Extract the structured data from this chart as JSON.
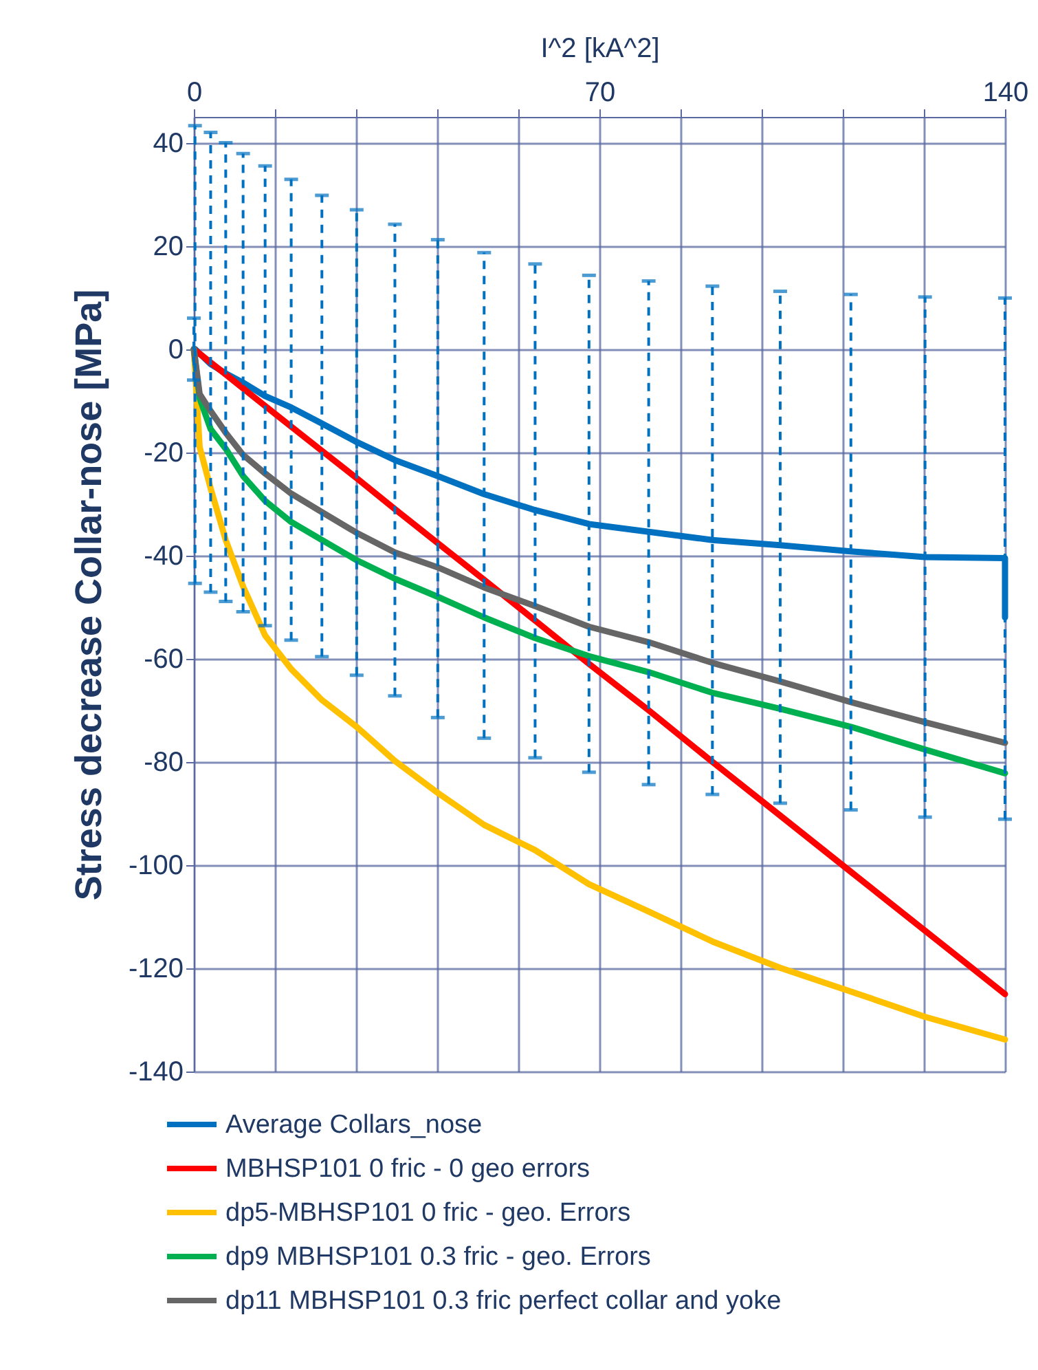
{
  "chart_data": {
    "type": "line",
    "xlabel": "I^2 [kA^2]",
    "ylabel": "Stress decrease Collar-nose [MPa]",
    "xlim": [
      0,
      140
    ],
    "ylim": [
      -140,
      45
    ],
    "xticks": [
      0,
      {
        "value": 14,
        "label": null
      },
      {
        "value": 28,
        "label": null
      },
      {
        "value": 42,
        "label": null
      },
      {
        "value": 56,
        "label": null
      },
      70,
      {
        "value": 84,
        "label": null
      },
      {
        "value": 98,
        "label": null
      },
      {
        "value": 112,
        "label": null
      },
      {
        "value": 126,
        "label": null
      },
      140
    ],
    "yticks": [
      -140,
      -120,
      -100,
      -80,
      -60,
      -40,
      -20,
      0,
      20,
      40
    ],
    "grid": true,
    "legend": "bottom",
    "series": [
      {
        "name": "Average Collars_nose",
        "color": "#0070c0",
        "x": [
          0,
          0.2,
          2.9,
          5.5,
          8.5,
          12.3,
          16.8,
          22.1,
          28.1,
          34.7,
          42.1,
          50.1,
          58.9,
          68.2,
          78.5,
          89.5,
          101.2,
          113.4,
          126.2,
          140,
          140
        ],
        "values": [
          0,
          0,
          -2.9,
          -4.7,
          -6.5,
          -9.1,
          -11.3,
          -14.4,
          -18,
          -21.5,
          -24.6,
          -28.1,
          -31.2,
          -33.9,
          -35.4,
          -37,
          -38,
          -39.2,
          -40.3,
          -40.5,
          -52
        ],
        "errors": [
          6,
          [
            -45.4,
            43.3
          ],
          [
            -47.1,
            42
          ],
          [
            -48.9,
            40
          ],
          [
            -50.9,
            37.9
          ],
          [
            -53.6,
            35.5
          ],
          [
            -56.4,
            32.9
          ],
          [
            -59.6,
            29.8
          ],
          [
            -63.2,
            27
          ],
          [
            -67.2,
            24.2
          ],
          [
            -71.4,
            21.2
          ],
          [
            -75.4,
            18.7
          ],
          [
            -79.2,
            16.5
          ],
          [
            -82,
            14.3
          ],
          [
            -84.4,
            13.2
          ],
          [
            -86.3,
            12.2
          ],
          [
            -88,
            11.2
          ],
          [
            -89.3,
            10.6
          ],
          [
            -90.7,
            10.1
          ],
          [
            -91.1,
            9.9
          ],
          null
        ]
      },
      {
        "name": "MBHSP101 0 fric - 0 geo errors",
        "color": "#ff0000",
        "x": [
          0,
          1,
          2.9,
          5.5,
          8.5,
          12.3,
          16.8,
          22.1,
          28.1,
          34.7,
          42.1,
          50.1,
          58.9,
          68.2,
          78.5,
          89.5,
          101.2,
          113.4,
          126.2,
          140
        ],
        "values": [
          0,
          -0.9,
          -2.6,
          -4.9,
          -7.6,
          -11,
          -15,
          -19.7,
          -25,
          -31,
          -37.6,
          -44.7,
          -52.6,
          -61,
          -70,
          -80,
          -90.4,
          -101.3,
          -112.7,
          -125
        ]
      },
      {
        "name": "dp5-MBHSP101 0 fric - geo. Errors",
        "color": "#ffc000",
        "x": [
          0,
          1,
          2.9,
          5.5,
          8.5,
          12.3,
          16.8,
          22.1,
          28.1,
          34.7,
          42.1,
          50.1,
          58.9,
          68.2,
          78.5,
          89.5,
          101.2,
          113.4,
          126.2,
          140
        ],
        "values": [
          0,
          -19,
          -27,
          -37,
          -46,
          -55.5,
          -62,
          -68,
          -73.2,
          -79.8,
          -86,
          -92.2,
          -97.1,
          -103.7,
          -109,
          -114.8,
          -119.9,
          -124.5,
          -129.4,
          -133.8
        ]
      },
      {
        "name": "dp9 MBHSP101 0.3 fric - geo. Errors",
        "color": "#00b050",
        "x": [
          0,
          1,
          2.9,
          5.5,
          8.5,
          12.3,
          16.8,
          22.1,
          28.1,
          34.7,
          42.1,
          50.1,
          58.9,
          68.2,
          78.5,
          89.5,
          101.2,
          113.4,
          126.2,
          140
        ],
        "values": [
          0,
          -9.5,
          -15.5,
          -19.3,
          -24.6,
          -29.4,
          -33.5,
          -37,
          -40.9,
          -44.5,
          -48,
          -52,
          -56,
          -59.5,
          -62.6,
          -66.6,
          -69.7,
          -73.2,
          -77.6,
          -82.2
        ]
      },
      {
        "name": "dp11 MBHSP101 0.3 fric perfect collar and yoke",
        "color": "#666666",
        "x": [
          0,
          1,
          2.9,
          5.5,
          8.5,
          12.3,
          16.8,
          22.1,
          28.1,
          34.7,
          42.1,
          50.1,
          58.9,
          68.2,
          78.5,
          89.5,
          101.2,
          113.4,
          126.2,
          140
        ],
        "values": [
          0,
          -8.7,
          -12,
          -16.2,
          -20.5,
          -24.1,
          -28,
          -31.6,
          -35.6,
          -39.4,
          -42.3,
          -46.2,
          -49.8,
          -53.8,
          -56.8,
          -60.8,
          -64.4,
          -68.4,
          -72.3,
          -76.3
        ]
      }
    ]
  }
}
